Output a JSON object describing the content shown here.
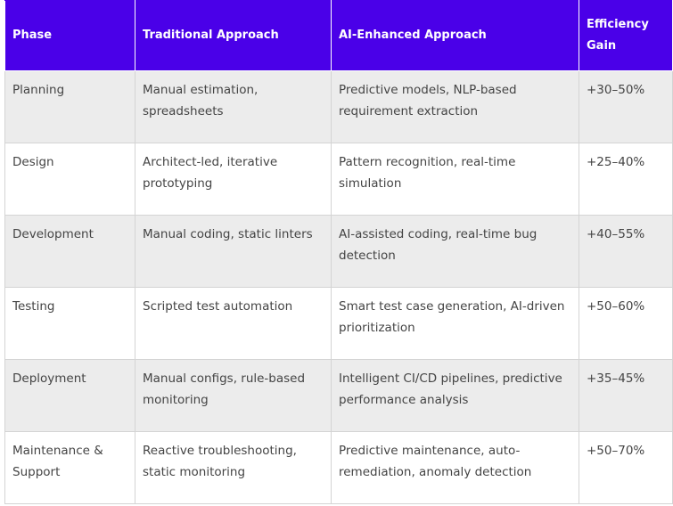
{
  "table": {
    "headers": [
      "Phase",
      "Traditional Approach",
      "AI-Enhanced Approach",
      "Efficiency Gain"
    ],
    "rows": [
      [
        "Planning",
        "Manual estimation, spreadsheets",
        "Predictive models, NLP-based requirement extraction",
        "+30–50%"
      ],
      [
        "Design",
        "Architect-led, iterative prototyping",
        "Pattern recognition, real-time simulation",
        "+25–40%"
      ],
      [
        "Development",
        "Manual coding, static linters",
        "AI-assisted coding, real-time bug detection",
        "+40–55%"
      ],
      [
        "Testing",
        "Scripted test automation",
        "Smart test case generation, AI-driven prioritization",
        "+50–60%"
      ],
      [
        "Deployment",
        "Manual configs, rule-based monitoring",
        "Intelligent CI/CD pipelines, predictive performance analysis",
        "+35–45%"
      ],
      [
        "Maintenance & Support",
        "Reactive troubleshooting, static monitoring",
        "Predictive maintenance, auto-remediation, anomaly detection",
        "+50–70%"
      ]
    ]
  }
}
